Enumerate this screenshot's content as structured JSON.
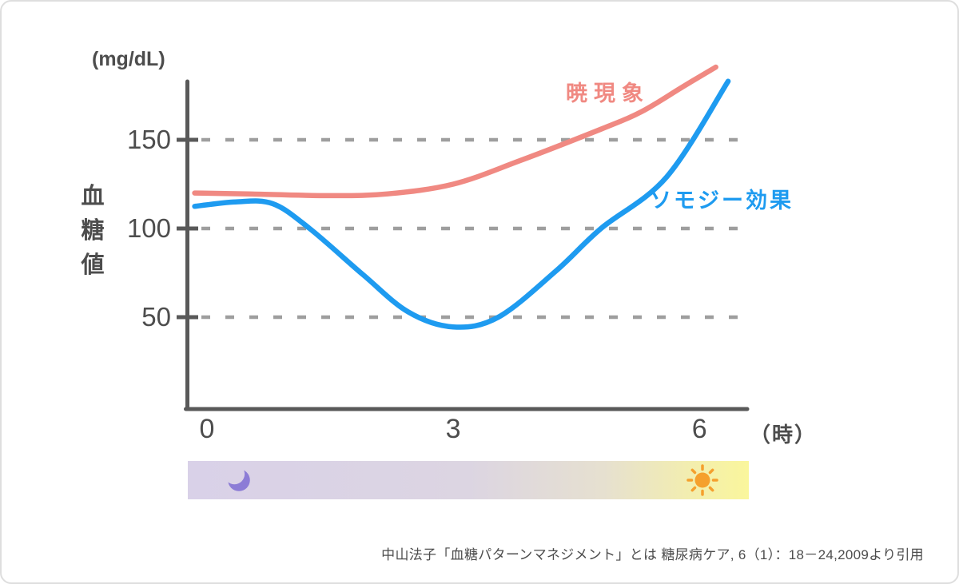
{
  "colors": {
    "dawn_line": "#F08982",
    "somogyi_line": "#1E9BF0",
    "axis": "#595959",
    "grid": "#9E9E9E",
    "text": "#4D4D4D",
    "moon": "#8C7CD6",
    "sun": "#F5A02D",
    "bar_night": "#D9D1E8",
    "bar_mid": "#DCD5E2",
    "bar_dusk": "#E6E0D0",
    "bar_dawn": "#F3EEAE",
    "bar_day": "#FAF69C"
  },
  "chart_data": {
    "type": "line",
    "title": "",
    "y_unit": "(mg/dL)",
    "ylabel": "血糖値",
    "ylabel_chars": [
      "血",
      "糖",
      "値"
    ],
    "x_unit": "（時）",
    "xticks": [
      0,
      3,
      6
    ],
    "yticks": [
      150,
      100,
      50
    ],
    "xlim": [
      -0.3,
      6.7
    ],
    "ylim": [
      0,
      200
    ],
    "grid": "horizontal-dashed",
    "legend_position": "inline-annotations",
    "series": [
      {
        "name": "暁現象",
        "color": "#F08982",
        "points": [
          [
            -0.15,
            120
          ],
          [
            0.5,
            119.5
          ],
          [
            1.5,
            118.5
          ],
          [
            2.2,
            119.5
          ],
          [
            3,
            125
          ],
          [
            3.8,
            138
          ],
          [
            4.8,
            156
          ],
          [
            5.3,
            166
          ],
          [
            5.8,
            180
          ],
          [
            6.2,
            191
          ]
        ]
      },
      {
        "name": "ソモジー効果",
        "color": "#1E9BF0",
        "points": [
          [
            -0.15,
            112.5
          ],
          [
            0.35,
            115
          ],
          [
            0.8,
            114
          ],
          [
            1.25,
            100
          ],
          [
            1.9,
            74
          ],
          [
            2.45,
            53
          ],
          [
            3,
            44.5
          ],
          [
            3.55,
            50
          ],
          [
            4.25,
            76
          ],
          [
            4.8,
            100
          ],
          [
            5.6,
            129
          ],
          [
            6.35,
            183
          ]
        ]
      }
    ]
  },
  "timebar": {
    "moon_icon": "crescent-moon",
    "sun_icon": "sun"
  },
  "citation": "中山法子「血糖パターンマネジメント」とは 糖尿病ケア, 6（1）：18－24,2009より引用"
}
